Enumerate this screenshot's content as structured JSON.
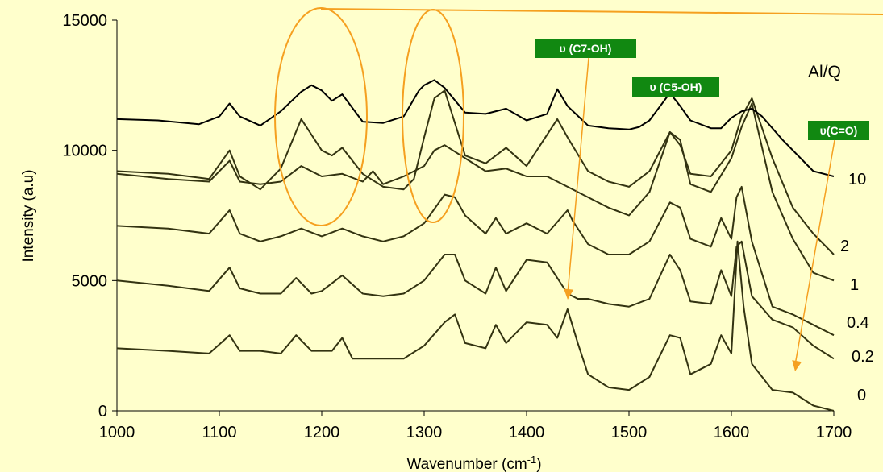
{
  "chart_data": {
    "type": "line",
    "title": "",
    "xlabel": "Wavenumber (cm",
    "xlabel_sup": "-1",
    "xlabel_close": ")",
    "ylabel": "Intensity (a.u)",
    "xlim": [
      1000,
      1700
    ],
    "ylim": [
      0,
      15000
    ],
    "xticks": [
      "1000",
      "1100",
      "1200",
      "1300",
      "1400",
      "1500",
      "1600",
      "1700"
    ],
    "yticks": [
      "0",
      "5000",
      "10000",
      "15000"
    ],
    "grid": false,
    "legend_title": "Al/Q",
    "line_color_black": "#000000",
    "line_color_dark": "#333311",
    "accent_color": "#f5a020",
    "badge_color": "#118811",
    "series": [
      {
        "name": "10",
        "color": "#000000",
        "x": [
          1000,
          1040,
          1080,
          1100,
          1110,
          1120,
          1140,
          1160,
          1180,
          1190,
          1200,
          1210,
          1220,
          1240,
          1260,
          1280,
          1295,
          1300,
          1310,
          1320,
          1340,
          1360,
          1380,
          1400,
          1420,
          1430,
          1440,
          1460,
          1480,
          1500,
          1510,
          1520,
          1540,
          1550,
          1560,
          1580,
          1590,
          1600,
          1610,
          1620,
          1630,
          1650,
          1680,
          1700
        ],
        "y": [
          11200,
          11150,
          11000,
          11300,
          11800,
          11300,
          10950,
          11500,
          12250,
          12500,
          12300,
          11900,
          12150,
          11100,
          11050,
          11300,
          12300,
          12500,
          12700,
          12400,
          11450,
          11400,
          11600,
          11150,
          11400,
          12350,
          11700,
          10950,
          10850,
          10800,
          10900,
          11150,
          12200,
          11700,
          11150,
          10850,
          10850,
          11250,
          11500,
          11600,
          11300,
          10400,
          9200,
          9000
        ]
      },
      {
        "name": "2",
        "color": "#333311",
        "x": [
          1000,
          1050,
          1090,
          1110,
          1120,
          1140,
          1160,
          1180,
          1200,
          1210,
          1220,
          1240,
          1260,
          1280,
          1290,
          1300,
          1310,
          1320,
          1340,
          1360,
          1380,
          1400,
          1420,
          1430,
          1440,
          1460,
          1480,
          1500,
          1520,
          1540,
          1550,
          1560,
          1580,
          1600,
          1610,
          1620,
          1640,
          1660,
          1680,
          1700
        ],
        "y": [
          9200,
          9100,
          8900,
          10000,
          9000,
          8500,
          9300,
          11200,
          10000,
          9800,
          10100,
          9100,
          8600,
          8500,
          8900,
          10500,
          12000,
          12300,
          9800,
          9500,
          10100,
          9400,
          10600,
          11200,
          10500,
          9200,
          8800,
          8600,
          9200,
          10700,
          10200,
          9100,
          9000,
          10000,
          11300,
          12000,
          9700,
          7800,
          6800,
          6000
        ]
      },
      {
        "name": "1",
        "color": "#333311",
        "x": [
          1000,
          1050,
          1090,
          1110,
          1120,
          1140,
          1160,
          1180,
          1200,
          1220,
          1240,
          1250,
          1260,
          1280,
          1300,
          1310,
          1320,
          1340,
          1360,
          1380,
          1400,
          1420,
          1440,
          1460,
          1480,
          1500,
          1520,
          1540,
          1550,
          1560,
          1580,
          1600,
          1610,
          1620,
          1640,
          1660,
          1680,
          1700
        ],
        "y": [
          9100,
          8900,
          8800,
          9600,
          8800,
          8700,
          8800,
          9400,
          9000,
          9100,
          8800,
          9200,
          8700,
          9000,
          9400,
          10000,
          10200,
          9700,
          9200,
          9300,
          9000,
          9000,
          8600,
          8200,
          7800,
          7500,
          8400,
          10700,
          10400,
          8700,
          8400,
          9700,
          10900,
          11800,
          8400,
          6600,
          5300,
          5000
        ]
      },
      {
        "name": "0.4",
        "color": "#333311",
        "x": [
          1000,
          1050,
          1090,
          1110,
          1120,
          1140,
          1160,
          1180,
          1200,
          1220,
          1240,
          1260,
          1280,
          1300,
          1320,
          1330,
          1340,
          1360,
          1370,
          1380,
          1400,
          1420,
          1440,
          1445,
          1460,
          1480,
          1500,
          1520,
          1540,
          1550,
          1560,
          1580,
          1590,
          1600,
          1605,
          1610,
          1620,
          1640,
          1660,
          1680,
          1700
        ],
        "y": [
          7100,
          7000,
          6800,
          7700,
          6800,
          6500,
          6700,
          7000,
          6700,
          7000,
          6700,
          6500,
          6700,
          7200,
          8300,
          8200,
          7500,
          6800,
          7400,
          6800,
          7200,
          6800,
          7700,
          7300,
          6400,
          6000,
          6000,
          6500,
          8000,
          7800,
          6600,
          6300,
          7400,
          6600,
          8200,
          8600,
          6500,
          4000,
          3700,
          3300,
          2900
        ]
      },
      {
        "name": "0.2",
        "color": "#333311",
        "x": [
          1000,
          1050,
          1090,
          1110,
          1120,
          1140,
          1160,
          1175,
          1190,
          1200,
          1220,
          1240,
          1260,
          1280,
          1300,
          1320,
          1330,
          1340,
          1360,
          1370,
          1380,
          1400,
          1420,
          1440,
          1450,
          1460,
          1480,
          1500,
          1520,
          1540,
          1550,
          1560,
          1580,
          1590,
          1600,
          1605,
          1610,
          1620,
          1640,
          1660,
          1680,
          1700
        ],
        "y": [
          5000,
          4800,
          4600,
          5500,
          4700,
          4500,
          4500,
          5100,
          4500,
          4600,
          5200,
          4500,
          4400,
          4500,
          5000,
          6000,
          6000,
          5000,
          4500,
          5500,
          4600,
          5800,
          5700,
          4500,
          4300,
          4300,
          4100,
          4000,
          4300,
          6000,
          5400,
          4200,
          4100,
          5400,
          4400,
          6300,
          6500,
          4400,
          3500,
          3200,
          2500,
          2000
        ]
      },
      {
        "name": "0",
        "color": "#333311",
        "x": [
          1000,
          1050,
          1090,
          1110,
          1120,
          1140,
          1160,
          1175,
          1190,
          1210,
          1220,
          1230,
          1260,
          1280,
          1300,
          1320,
          1330,
          1340,
          1360,
          1370,
          1380,
          1400,
          1420,
          1430,
          1440,
          1450,
          1460,
          1480,
          1500,
          1520,
          1540,
          1550,
          1560,
          1580,
          1590,
          1600,
          1606,
          1612,
          1620,
          1640,
          1660,
          1680,
          1700
        ],
        "y": [
          2400,
          2300,
          2200,
          2900,
          2300,
          2300,
          2200,
          2900,
          2300,
          2300,
          2800,
          2000,
          2000,
          2000,
          2500,
          3400,
          3700,
          2600,
          2400,
          3300,
          2600,
          3400,
          3300,
          2800,
          3900,
          2600,
          1400,
          900,
          800,
          1300,
          2900,
          2800,
          1400,
          1800,
          2900,
          2200,
          6500,
          4000,
          1800,
          800,
          700,
          200,
          0
        ]
      }
    ],
    "annotations": [
      {
        "label": "υ (C7-OH)"
      },
      {
        "label": "υ (C5-OH)"
      },
      {
        "label": "υ(C=O)"
      }
    ]
  }
}
